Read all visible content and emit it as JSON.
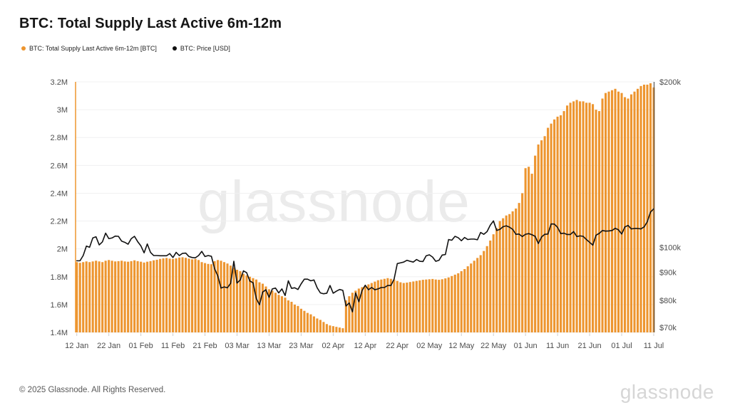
{
  "title": "BTC: Total Supply Last Active 6m-12m",
  "footer": "© 2025 Glassnode. All Rights Reserved.",
  "watermark": {
    "center": "glassnode",
    "corner": "glassnode"
  },
  "colors": {
    "bar": "#ED952F",
    "line": "#111111",
    "grid": "#f0f0f1",
    "axis_text": "#4d4d4d",
    "right_axis_line": "#555555"
  },
  "chart_data": {
    "type": "bar+line",
    "title": "BTC: Total Supply Last Active 6m-12m",
    "start_date": "12 Jan",
    "end_date": "11 Jul",
    "grid": "horizontal-only",
    "legend_position": "top-left",
    "x_tick_labels": [
      "12 Jan",
      "22 Jan",
      "01 Feb",
      "11 Feb",
      "21 Feb",
      "03 Mar",
      "13 Mar",
      "23 Mar",
      "02 Apr",
      "12 Apr",
      "22 Apr",
      "02 May",
      "12 May",
      "22 May",
      "01 Jun",
      "11 Jun",
      "21 Jun",
      "01 Jul",
      "11 Jul"
    ],
    "x_tick_day_index": [
      0,
      10,
      20,
      30,
      40,
      50,
      60,
      70,
      80,
      90,
      100,
      110,
      120,
      130,
      140,
      150,
      160,
      170,
      180
    ],
    "left_axis": {
      "scale": "linear",
      "unit": "BTC (millions)",
      "min": 1.4,
      "max": 3.2,
      "ticks": [
        {
          "v": 1.4,
          "label": "1.4M"
        },
        {
          "v": 1.6,
          "label": "1.6M"
        },
        {
          "v": 1.8,
          "label": "1.8M"
        },
        {
          "v": 2.0,
          "label": "2M"
        },
        {
          "v": 2.2,
          "label": "2.2M"
        },
        {
          "v": 2.4,
          "label": "2.4M"
        },
        {
          "v": 2.6,
          "label": "2.6M"
        },
        {
          "v": 2.8,
          "label": "2.8M"
        },
        {
          "v": 3.0,
          "label": "3M"
        },
        {
          "v": 3.2,
          "label": "3.2M"
        }
      ]
    },
    "right_axis": {
      "scale": "log",
      "unit": "USD (thousands)",
      "min": 70,
      "max": 200,
      "ticks": [
        {
          "v": 70,
          "label": "$70k"
        },
        {
          "v": 80,
          "label": "$80k"
        },
        {
          "v": 90,
          "label": "$90k"
        },
        {
          "v": 100,
          "label": "$100k"
        },
        {
          "v": 200,
          "label": "$200k"
        }
      ]
    },
    "series": [
      {
        "name": "BTC: Total Supply Last Active 6m-12m [BTC]",
        "type": "bar",
        "axis": "left",
        "color": "#ED952F",
        "unit": "M BTC",
        "values": [
          1.905,
          1.9,
          1.905,
          1.91,
          1.905,
          1.91,
          1.915,
          1.91,
          1.905,
          1.915,
          1.92,
          1.915,
          1.91,
          1.912,
          1.915,
          1.91,
          1.908,
          1.912,
          1.918,
          1.912,
          1.908,
          1.902,
          1.908,
          1.912,
          1.918,
          1.922,
          1.928,
          1.932,
          1.935,
          1.93,
          1.928,
          1.932,
          1.938,
          1.94,
          1.936,
          1.93,
          1.925,
          1.928,
          1.92,
          1.905,
          1.898,
          1.892,
          1.89,
          1.912,
          1.92,
          1.915,
          1.905,
          1.895,
          1.88,
          1.865,
          1.85,
          1.84,
          1.82,
          1.81,
          1.8,
          1.79,
          1.78,
          1.76,
          1.75,
          1.73,
          1.71,
          1.7,
          1.685,
          1.67,
          1.66,
          1.65,
          1.63,
          1.62,
          1.6,
          1.59,
          1.57,
          1.555,
          1.54,
          1.53,
          1.515,
          1.5,
          1.49,
          1.475,
          1.46,
          1.45,
          1.445,
          1.44,
          1.435,
          1.43,
          1.63,
          1.66,
          1.685,
          1.7,
          1.715,
          1.725,
          1.735,
          1.745,
          1.755,
          1.765,
          1.775,
          1.78,
          1.785,
          1.79,
          1.785,
          1.78,
          1.77,
          1.76,
          1.755,
          1.758,
          1.762,
          1.766,
          1.77,
          1.774,
          1.778,
          1.78,
          1.782,
          1.784,
          1.78,
          1.778,
          1.782,
          1.788,
          1.795,
          1.805,
          1.815,
          1.825,
          1.84,
          1.855,
          1.875,
          1.895,
          1.915,
          1.935,
          1.955,
          1.985,
          2.02,
          2.06,
          2.105,
          2.15,
          2.2,
          2.22,
          2.24,
          2.25,
          2.27,
          2.29,
          2.33,
          2.4,
          2.58,
          2.59,
          2.54,
          2.67,
          2.75,
          2.78,
          2.81,
          2.87,
          2.9,
          2.93,
          2.95,
          2.96,
          2.99,
          3.03,
          3.05,
          3.06,
          3.07,
          3.06,
          3.06,
          3.05,
          3.05,
          3.04,
          3.0,
          2.99,
          3.08,
          3.12,
          3.13,
          3.14,
          3.15,
          3.13,
          3.12,
          3.09,
          3.08,
          3.11,
          3.13,
          3.15,
          3.17,
          3.18,
          3.18,
          3.19,
          3.16
        ]
      },
      {
        "name": "BTC: Price [USD]",
        "type": "line",
        "axis": "right",
        "color": "#111111",
        "unit": "k USD",
        "values": [
          94.5,
          94.5,
          96.6,
          100.5,
          100.0,
          104.0,
          104.5,
          101.0,
          102.3,
          106.1,
          103.7,
          104.0,
          104.8,
          104.7,
          102.6,
          102.1,
          101.3,
          103.7,
          104.7,
          102.4,
          100.6,
          97.7,
          101.4,
          97.9,
          96.6,
          96.6,
          96.5,
          96.5,
          96.5,
          97.4,
          95.8,
          97.9,
          96.6,
          97.5,
          97.6,
          96.2,
          95.8,
          95.7,
          96.6,
          98.3,
          96.2,
          96.6,
          96.3,
          91.4,
          88.7,
          84.3,
          84.7,
          84.4,
          86.0,
          94.3,
          86.1,
          87.2,
          90.6,
          89.9,
          86.8,
          86.2,
          80.7,
          78.6,
          82.9,
          83.7,
          81.1,
          84.0,
          84.3,
          82.6,
          84.0,
          81.7,
          86.9,
          84.2,
          84.4,
          83.8,
          85.8,
          87.5,
          87.5,
          86.9,
          87.2,
          84.4,
          82.6,
          82.3,
          82.5,
          85.2,
          82.5,
          83.2,
          83.8,
          83.5,
          78.2,
          79.2,
          76.3,
          82.6,
          79.6,
          83.4,
          85.3,
          83.7,
          84.5,
          83.7,
          84.0,
          84.5,
          84.5,
          85.2,
          85.2,
          87.5,
          93.4,
          93.7,
          94.0,
          94.7,
          94.3,
          94.0,
          95.0,
          94.3,
          94.2,
          96.5,
          96.9,
          96.0,
          94.3,
          94.7,
          96.8,
          97.0,
          103.3,
          103.0,
          104.7,
          104.1,
          102.8,
          104.2,
          103.3,
          103.5,
          103.5,
          103.2,
          106.4,
          105.6,
          106.8,
          109.7,
          111.7,
          107.3,
          107.8,
          109.0,
          109.4,
          108.8,
          107.8,
          105.6,
          105.7,
          104.6,
          105.6,
          105.9,
          105.4,
          104.7,
          101.6,
          104.4,
          105.6,
          105.7,
          110.3,
          110.2,
          108.7,
          105.9,
          106.1,
          105.5,
          105.5,
          106.8,
          104.6,
          104.9,
          104.7,
          103.3,
          102.1,
          100.9,
          105.2,
          106.0,
          107.3,
          107.0,
          107.1,
          107.3,
          108.3,
          107.6,
          105.7,
          108.9,
          109.6,
          108.0,
          108.2,
          108.2,
          108.0,
          108.9,
          111.3,
          115.9,
          117.5
        ]
      }
    ]
  }
}
